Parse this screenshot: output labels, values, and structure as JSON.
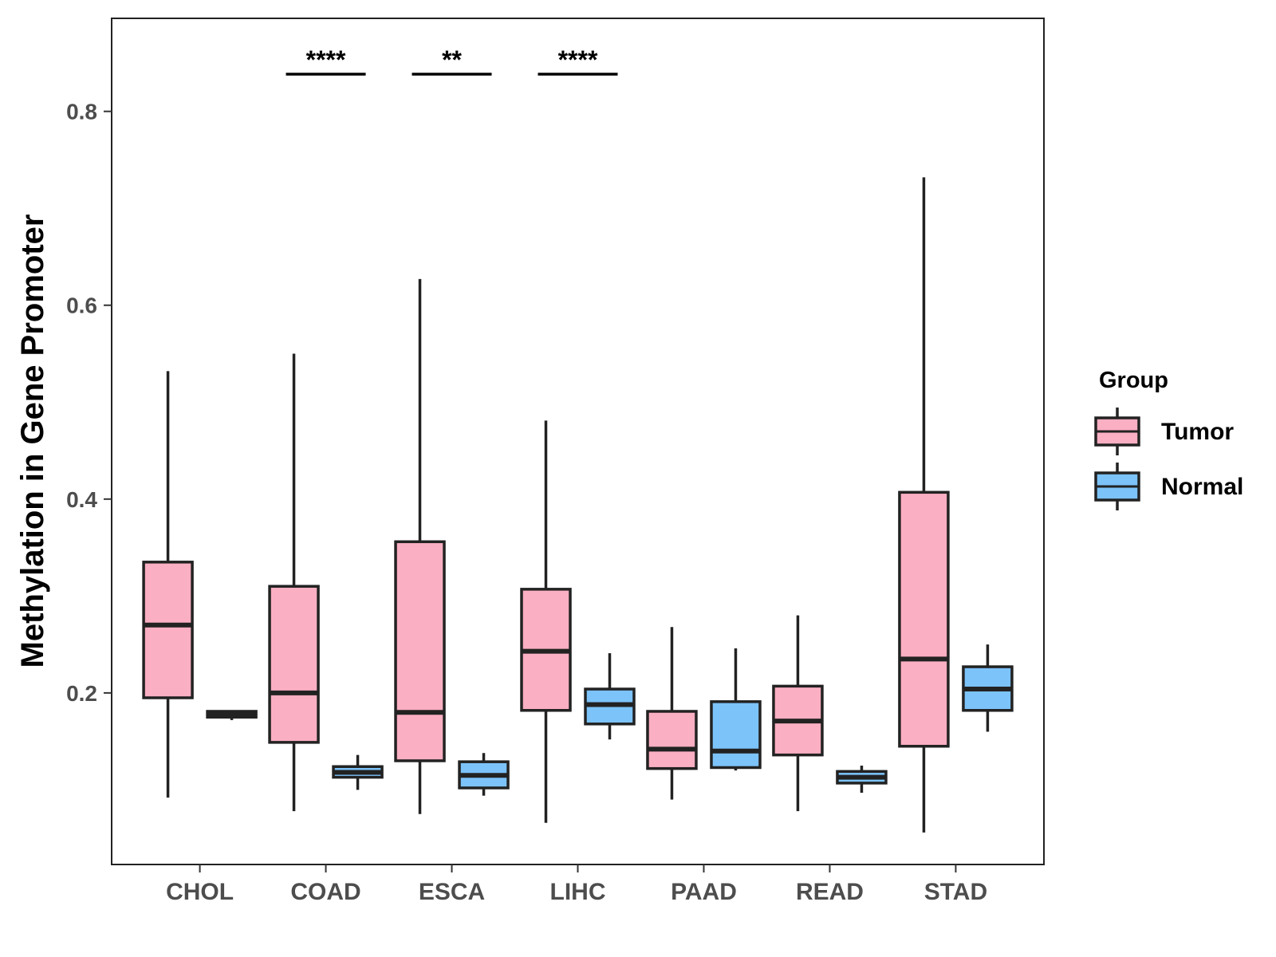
{
  "chart_data": {
    "type": "boxplot",
    "title": "",
    "xlabel": "",
    "ylabel": "Methylation in Gene Promoter",
    "ylim": [
      0.023,
      0.896
    ],
    "yticks": [
      0.2,
      0.4,
      0.6,
      0.8
    ],
    "ytick_labels": [
      "0.2",
      "0.4",
      "0.6",
      "0.8"
    ],
    "categories": [
      "CHOL",
      "COAD",
      "ESCA",
      "LIHC",
      "PAAD",
      "READ",
      "STAD"
    ],
    "legend": {
      "title": "Group",
      "position": "right",
      "entries": [
        {
          "name": "Tumor",
          "color": "#FBAFC2"
        },
        {
          "name": "Normal",
          "color": "#7CC3FA"
        }
      ]
    },
    "series": [
      {
        "name": "Tumor",
        "color": "#FBAFC2",
        "boxes": [
          {
            "category": "CHOL",
            "min": 0.092,
            "q1": 0.195,
            "median": 0.27,
            "q3": 0.335,
            "max": 0.532
          },
          {
            "category": "COAD",
            "min": 0.078,
            "q1": 0.149,
            "median": 0.2,
            "q3": 0.31,
            "max": 0.55
          },
          {
            "category": "ESCA",
            "min": 0.075,
            "q1": 0.13,
            "median": 0.18,
            "q3": 0.356,
            "max": 0.627
          },
          {
            "category": "LIHC",
            "min": 0.066,
            "q1": 0.182,
            "median": 0.243,
            "q3": 0.307,
            "max": 0.481
          },
          {
            "category": "PAAD",
            "min": 0.09,
            "q1": 0.122,
            "median": 0.142,
            "q3": 0.181,
            "max": 0.268
          },
          {
            "category": "READ",
            "min": 0.078,
            "q1": 0.136,
            "median": 0.171,
            "q3": 0.207,
            "max": 0.28
          },
          {
            "category": "STAD",
            "min": 0.056,
            "q1": 0.145,
            "median": 0.235,
            "q3": 0.407,
            "max": 0.732
          }
        ]
      },
      {
        "name": "Normal",
        "color": "#7CC3FA",
        "boxes": [
          {
            "category": "CHOL",
            "min": 0.172,
            "q1": 0.175,
            "median": 0.178,
            "q3": 0.181,
            "max": 0.181
          },
          {
            "category": "COAD",
            "min": 0.1,
            "q1": 0.113,
            "median": 0.118,
            "q3": 0.124,
            "max": 0.136
          },
          {
            "category": "ESCA",
            "min": 0.094,
            "q1": 0.102,
            "median": 0.115,
            "q3": 0.129,
            "max": 0.138
          },
          {
            "category": "LIHC",
            "min": 0.152,
            "q1": 0.168,
            "median": 0.188,
            "q3": 0.204,
            "max": 0.241
          },
          {
            "category": "PAAD",
            "min": 0.12,
            "q1": 0.123,
            "median": 0.14,
            "q3": 0.191,
            "max": 0.246
          },
          {
            "category": "READ",
            "min": 0.097,
            "q1": 0.107,
            "median": 0.113,
            "q3": 0.119,
            "max": 0.125
          },
          {
            "category": "STAD",
            "min": 0.16,
            "q1": 0.182,
            "median": 0.204,
            "q3": 0.227,
            "max": 0.25
          }
        ]
      }
    ],
    "annotations": [
      {
        "category": "COAD",
        "label": "****"
      },
      {
        "category": "ESCA",
        "label": "**"
      },
      {
        "category": "LIHC",
        "label": "****"
      }
    ]
  }
}
